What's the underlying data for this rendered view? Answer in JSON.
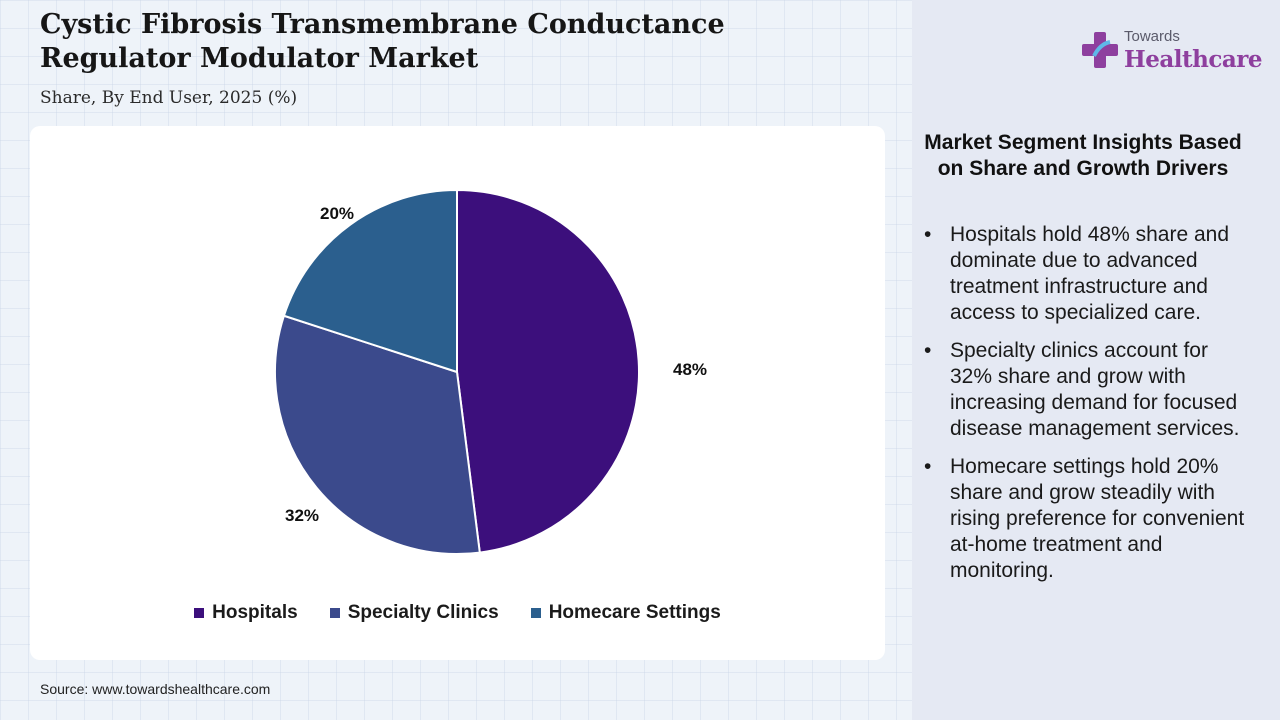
{
  "header": {
    "title_line1": "Cystic Fibrosis Transmembrane Conductance",
    "title_line2": "Regulator Modulator Market",
    "subtitle": "Share, By End User, 2025 (%)"
  },
  "logo": {
    "line1": "Towards",
    "line2": "Healthcare"
  },
  "chart_data": {
    "type": "pie",
    "categories": [
      "Hospitals",
      "Specialty Clinics",
      "Homecare Settings"
    ],
    "values": [
      48,
      32,
      20
    ],
    "labels": [
      "48%",
      "32%",
      "20%"
    ],
    "colors": [
      "#3c0f7c",
      "#3b4a8c",
      "#2b5f8e"
    ],
    "legend_position": "bottom"
  },
  "source": "Source: www.towardshealthcare.com",
  "insights": {
    "title": "Market Segment Insights Based on Share and Growth Drivers",
    "items": [
      "Hospitals hold 48% share and dominate due to advanced treatment infrastructure and access to specialized care.",
      "Specialty clinics account for 32% share and grow with increasing demand for focused disease management services.",
      "Homecare settings hold 20% share and grow steadily with rising preference for convenient at-home treatment and monitoring."
    ]
  }
}
